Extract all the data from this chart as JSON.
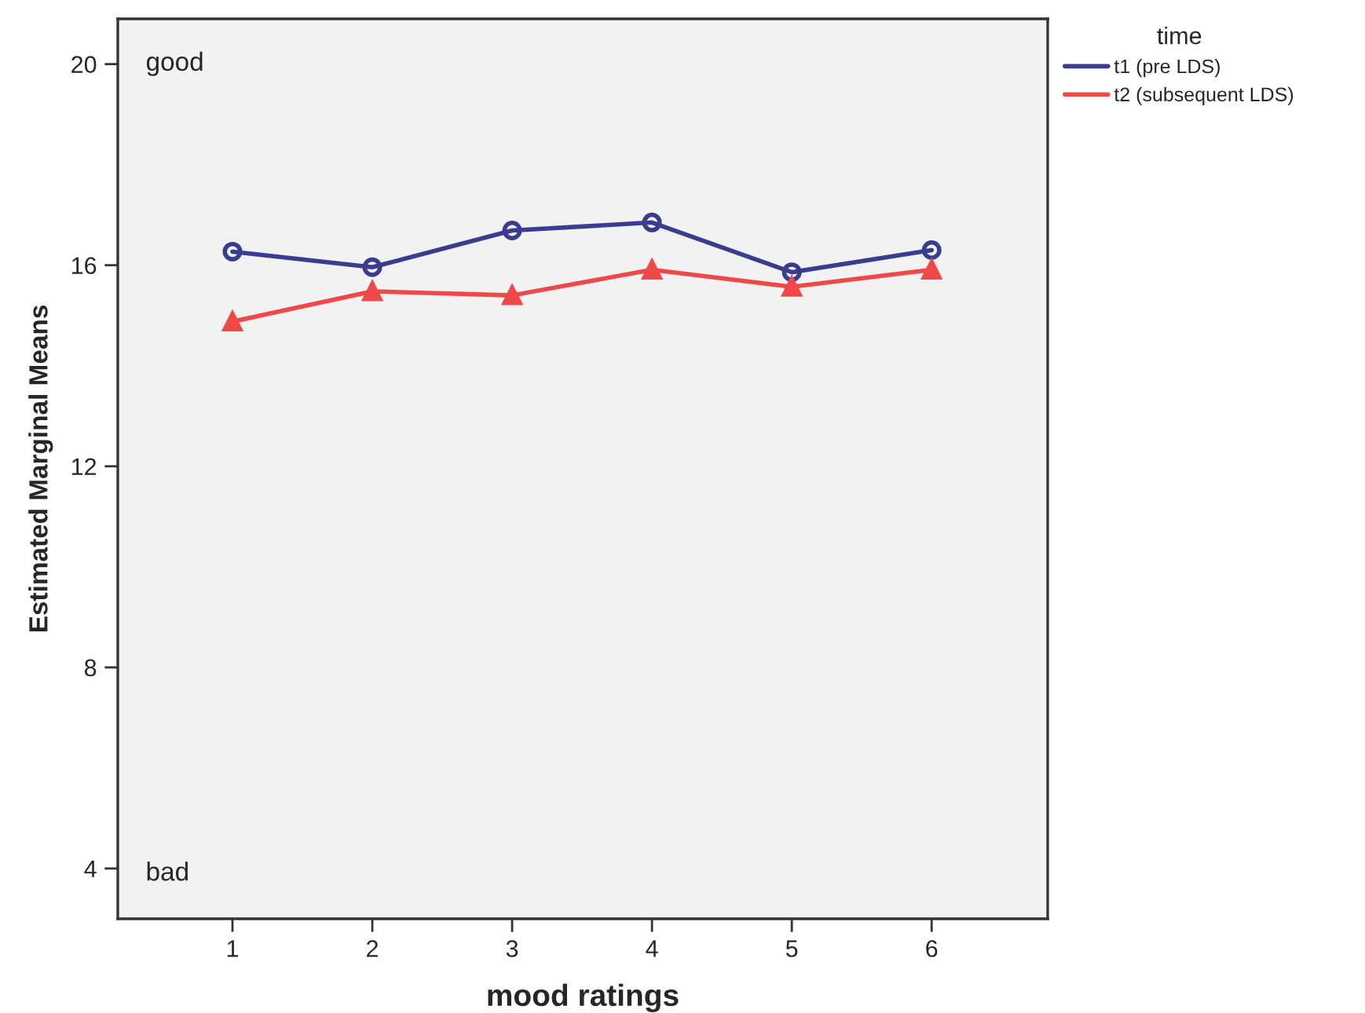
{
  "chart_data": {
    "type": "line",
    "xlabel": "mood ratings",
    "ylabel": "Estimated Marginal Means",
    "legend_title": "time",
    "legend": "top right",
    "x": [
      1,
      2,
      3,
      4,
      5,
      6
    ],
    "xlim": [
      0.18,
      6.83
    ],
    "xticks": [
      1,
      2,
      3,
      4,
      5,
      6
    ],
    "ylim": [
      3.0,
      20.9
    ],
    "yticks": [
      4,
      8,
      12,
      16,
      20
    ],
    "grid": false,
    "series": [
      {
        "name": "t1 (pre LDS)",
        "color": "#3a3d8f",
        "marker": "circle",
        "values": [
          16.27,
          15.96,
          16.69,
          16.85,
          15.86,
          16.3
        ]
      },
      {
        "name": "t2 (subsequent LDS)",
        "color": "#f04848",
        "marker": "triangle",
        "values": [
          14.88,
          15.48,
          15.4,
          15.91,
          15.57,
          15.91
        ]
      }
    ],
    "annotations": [
      "good",
      "bad"
    ]
  }
}
